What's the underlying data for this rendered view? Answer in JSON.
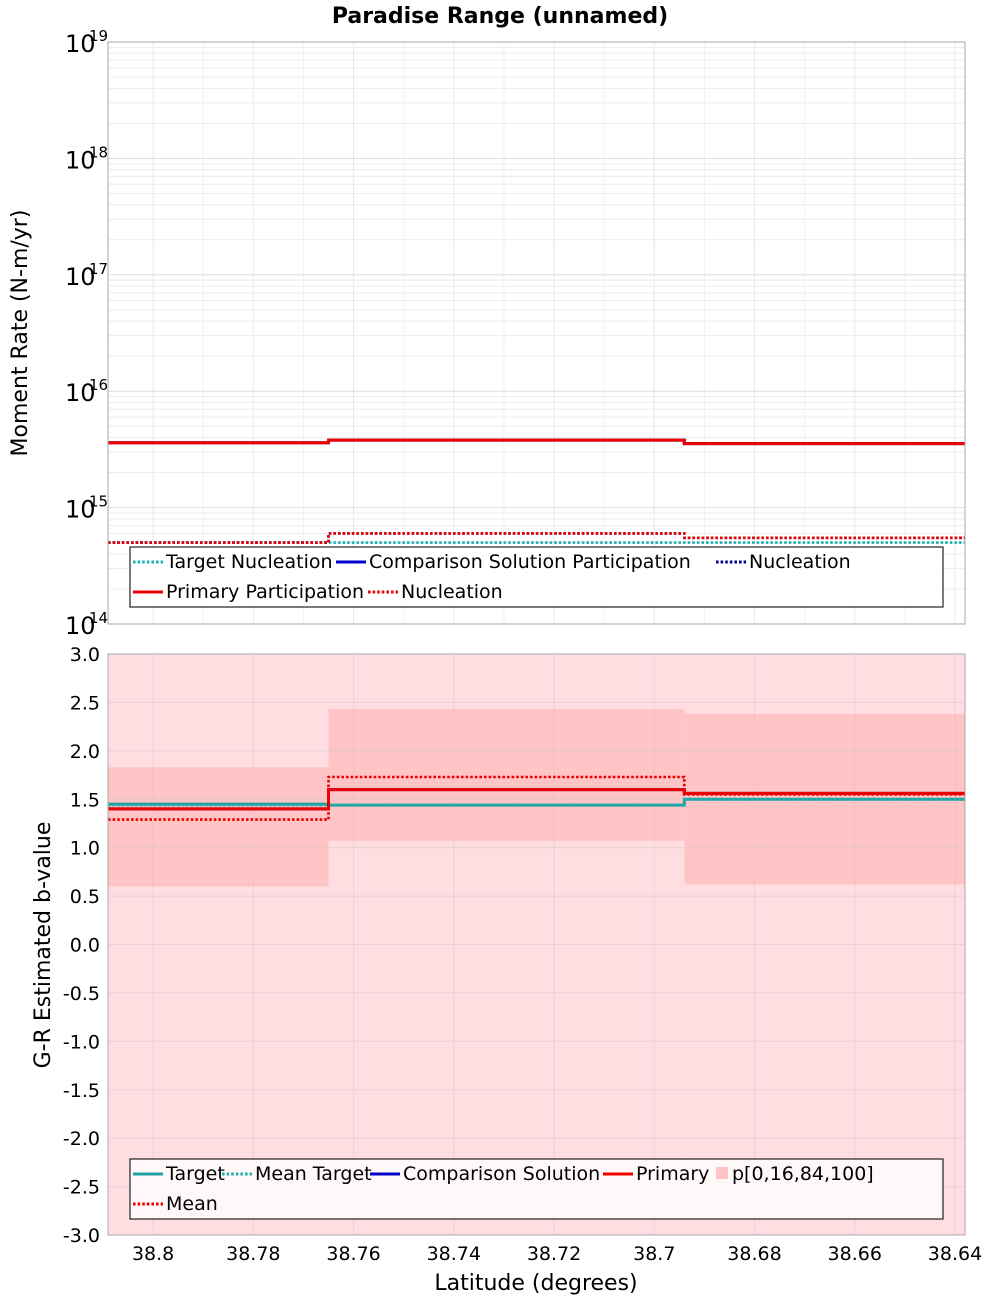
{
  "title": "Paradise Range (unnamed)",
  "x_axis": {
    "label": "Latitude (degrees)",
    "range": [
      38.809,
      38.638
    ],
    "ticks": [
      38.8,
      38.78,
      38.76,
      38.74,
      38.72,
      38.7,
      38.68,
      38.66,
      38.64
    ],
    "tick_labels": [
      "38.8",
      "38.78",
      "38.76",
      "38.74",
      "38.72",
      "38.7",
      "38.68",
      "38.66",
      "38.64"
    ]
  },
  "colors": {
    "teal": "#20a0a0",
    "cyan_dotted": "#20b0b0",
    "blue": "#0000cc",
    "navy_dotted": "#000090",
    "red": "#ee0000",
    "band_outer": "#ffdde0",
    "band_inner": "#ffc4c6",
    "grid": "#e8e8e8"
  },
  "chart_data": [
    {
      "type": "line",
      "step": true,
      "ylabel": "Moment Rate (N-m/yr)",
      "yscale": "log",
      "ylim": [
        100000000000000.0,
        1e+19
      ],
      "y_ticks": [
        {
          "base": "10",
          "exp": "14"
        },
        {
          "base": "10",
          "exp": "15"
        },
        {
          "base": "10",
          "exp": "16"
        },
        {
          "base": "10",
          "exp": "17"
        },
        {
          "base": "10",
          "exp": "18"
        },
        {
          "base": "10",
          "exp": "19"
        }
      ],
      "bins": [
        [
          38.809,
          38.765
        ],
        [
          38.765,
          38.694
        ],
        [
          38.694,
          38.638
        ]
      ],
      "series": [
        {
          "name": "Target Nucleation",
          "style": "dotted",
          "color": "#20b0b0",
          "values": [
            500000000000000.0,
            500000000000000.0,
            500000000000000.0
          ]
        },
        {
          "name": "Comparison Solution Participation",
          "style": "solid",
          "color": "#0000cc",
          "values": [
            3600000000000000.0,
            3800000000000000.0,
            3550000000000000.0
          ]
        },
        {
          "name": "Nucleation",
          "style": "dotted",
          "color": "#000090",
          "values": [
            500000000000000.0,
            600000000000000.0,
            550000000000000.0
          ]
        },
        {
          "name": "Primary Participation",
          "style": "solid",
          "color": "#ee0000",
          "values": [
            3600000000000000.0,
            3800000000000000.0,
            3550000000000000.0
          ]
        },
        {
          "name": "Nucleation",
          "style": "dotted",
          "color": "#ee0000",
          "values": [
            500000000000000.0,
            600000000000000.0,
            550000000000000.0
          ]
        }
      ],
      "legend": [
        "Target Nucleation",
        "Comparison Solution Participation",
        "Nucleation",
        "Primary Participation",
        "Nucleation"
      ],
      "legend_position": "bottom-center",
      "grid": true
    },
    {
      "type": "line",
      "step": true,
      "ylabel": "G-R Estimated b-value",
      "ylim": [
        -3.0,
        3.0
      ],
      "y_tick_labels": [
        "3.0",
        "2.5",
        "2.0",
        "1.5",
        "1.0",
        "0.5",
        "0.0",
        "-0.5",
        "-1.0",
        "-1.5",
        "-2.0",
        "-2.5",
        "-3.0"
      ],
      "bins": [
        [
          38.809,
          38.765
        ],
        [
          38.765,
          38.694
        ],
        [
          38.694,
          38.638
        ]
      ],
      "bands": {
        "name": "p[0,16,84,100]",
        "p0": [
          -3.0,
          -3.0,
          -3.0
        ],
        "p16": [
          0.6,
          1.07,
          0.62
        ],
        "p84": [
          1.83,
          2.43,
          2.38
        ],
        "p100": [
          3.0,
          3.0,
          3.0
        ]
      },
      "series": [
        {
          "name": "Target",
          "style": "solid",
          "color": "#20a0a0",
          "values": [
            1.45,
            1.44,
            1.5
          ]
        },
        {
          "name": "Mean Target",
          "style": "dotted",
          "color": "#20b0b0",
          "values": [
            1.44,
            1.44,
            1.5
          ]
        },
        {
          "name": "Comparison Solution",
          "style": "solid",
          "color": "#0000cc",
          "values": [
            1.4,
            1.6,
            1.56
          ]
        },
        {
          "name": "Primary",
          "style": "solid",
          "color": "#ee0000",
          "values": [
            1.4,
            1.6,
            1.56
          ]
        },
        {
          "name": "Mean",
          "style": "dotted",
          "color": "#ee0000",
          "values": [
            1.29,
            1.73,
            1.55
          ]
        }
      ],
      "legend": [
        "Target",
        "Mean Target",
        "Comparison Solution",
        "Primary",
        "p[0,16,84,100]",
        "Mean"
      ],
      "legend_position": "bottom-center",
      "grid": true
    }
  ]
}
